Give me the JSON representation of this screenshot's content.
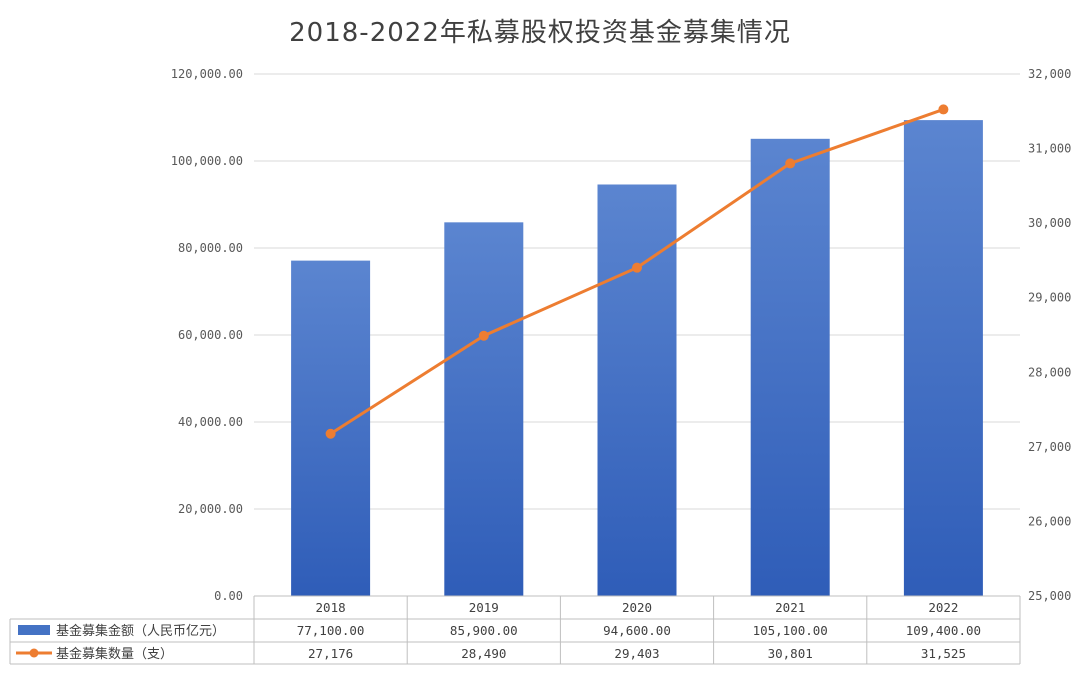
{
  "chart_data": {
    "type": "bar",
    "title": "2018-2022年私募股权投资基金募集情况",
    "categories": [
      "2018",
      "2019",
      "2020",
      "2021",
      "2022"
    ],
    "series": [
      {
        "name": "基金募集金额（人民币亿元）",
        "type": "bar",
        "axis": "left",
        "values": [
          77100,
          85900,
          94600,
          105100,
          109400
        ],
        "display_values": [
          "77,100.00",
          "85,900.00",
          "94,600.00",
          "105,100.00",
          "109,400.00"
        ],
        "color": "#4472C4"
      },
      {
        "name": "基金募集数量（支）",
        "type": "line",
        "axis": "right",
        "values": [
          27176,
          28490,
          29403,
          30801,
          31525
        ],
        "display_values": [
          "27,176",
          "28,490",
          "29,403",
          "30,801",
          "31,525"
        ],
        "color": "#ED7D31"
      }
    ],
    "y_left": {
      "range": [
        0,
        120000
      ],
      "ticks": [
        0,
        20000,
        40000,
        60000,
        80000,
        100000,
        120000
      ],
      "tick_labels": [
        "0.00",
        "20,000.00",
        "40,000.00",
        "60,000.00",
        "80,000.00",
        "100,000.00",
        "120,000.00"
      ]
    },
    "y_right": {
      "range": [
        25000,
        32000
      ],
      "ticks": [
        25000,
        26000,
        27000,
        28000,
        29000,
        30000,
        31000,
        32000
      ],
      "tick_labels": [
        "25,000",
        "26,000",
        "27,000",
        "28,000",
        "29,000",
        "30,000",
        "31,000",
        "32,000"
      ]
    },
    "grid": true,
    "legend": "data-table"
  }
}
